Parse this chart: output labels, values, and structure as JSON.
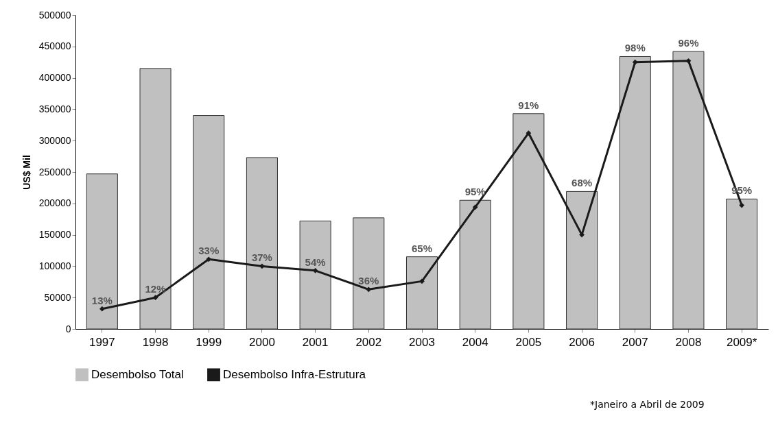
{
  "chart_data": {
    "type": "bar",
    "ylabel": "US$ Mil",
    "categories": [
      "1997",
      "1998",
      "1999",
      "2000",
      "2001",
      "2002",
      "2003",
      "2004",
      "2005",
      "2006",
      "2007",
      "2008",
      "2009*"
    ],
    "ylim": [
      0,
      500000
    ],
    "yticks": [
      0,
      50000,
      100000,
      150000,
      200000,
      250000,
      300000,
      350000,
      400000,
      450000,
      500000
    ],
    "series": [
      {
        "name": "Desembolso Total",
        "color": "#c0c0c0",
        "values": [
          247000,
          415000,
          340000,
          273000,
          172000,
          177000,
          115000,
          205000,
          343000,
          219000,
          434000,
          442000,
          207000
        ]
      },
      {
        "name": "Desembolso Infra-Estrutura",
        "type": "line",
        "color": "#1a1a1a",
        "marker": "diamond",
        "values": [
          32000,
          50000,
          111000,
          100000,
          93000,
          63000,
          76000,
          194000,
          312000,
          150000,
          425000,
          427000,
          197000
        ]
      }
    ],
    "legend": "bottom",
    "annotations": [
      {
        "text": "13%",
        "x": "1997",
        "y": 32000
      },
      {
        "text": "12%",
        "x": "1998",
        "y": 50000
      },
      {
        "text": "33%",
        "x": "1999",
        "y": 111000
      },
      {
        "text": "37%",
        "x": "2000",
        "y": 100000
      },
      {
        "text": "54%",
        "x": "2001",
        "y": 93000
      },
      {
        "text": "36%",
        "x": "2002",
        "y": 63000
      },
      {
        "text": "65%",
        "x": "2003",
        "y": 115000
      },
      {
        "text": "95%",
        "x": "2004",
        "y": 205000
      },
      {
        "text": "91%",
        "x": "2005",
        "y": 343000
      },
      {
        "text": "68%",
        "x": "2006",
        "y": 219000
      },
      {
        "text": "98%",
        "x": "2007",
        "y": 434000
      },
      {
        "text": "96%",
        "x": "2008",
        "y": 442000
      },
      {
        "text": "95%",
        "x": "2009*",
        "y": 207000
      },
      "*Janeiro a  Abril de 2009"
    ]
  }
}
